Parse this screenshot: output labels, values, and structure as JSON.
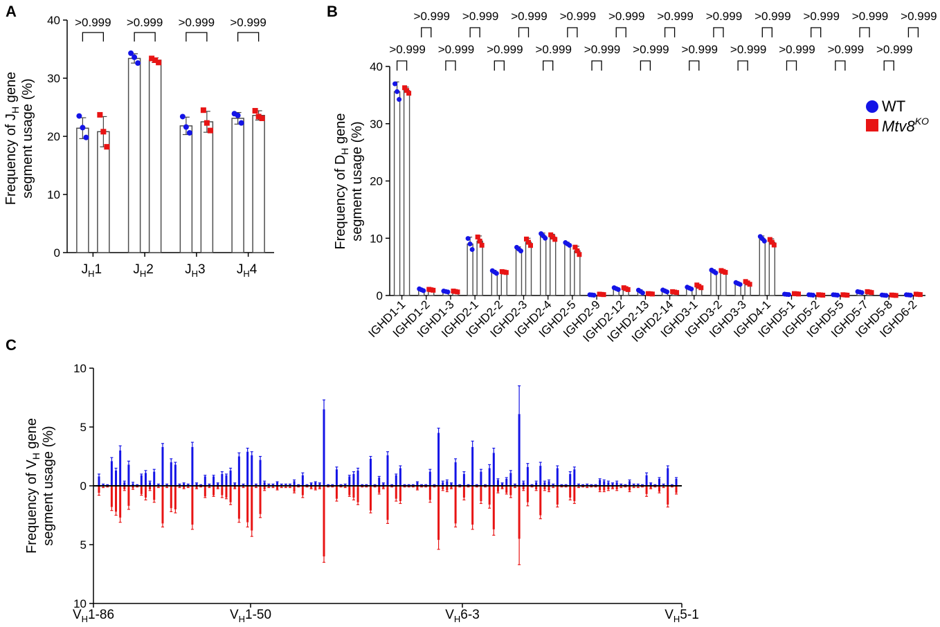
{
  "panels": {
    "a": "A",
    "b": "B",
    "c": "C"
  },
  "legend": {
    "wt": "WT",
    "ko_main": "Mtv8",
    "ko_sup": "KO"
  },
  "colors": {
    "wt": "#1414e6",
    "ko": "#e81414",
    "bar_edge": "#4d4d4d",
    "axis": "#000000"
  },
  "chart_data": [
    {
      "id": "A",
      "type": "bar",
      "title": "",
      "ylabel_line1_pre": "Frequency of J",
      "ylabel_line1_sub": "H",
      "ylabel_line1_post": " gene",
      "ylabel_line2": "segment usage (%)",
      "ylim": [
        0,
        40
      ],
      "yticks": [
        0,
        10,
        20,
        30,
        40
      ],
      "categories": [
        {
          "main": "J",
          "sub": "H",
          "num": "1"
        },
        {
          "main": "J",
          "sub": "H",
          "num": "2"
        },
        {
          "main": "J",
          "sub": "H",
          "num": "3"
        },
        {
          "main": "J",
          "sub": "H",
          "num": "4"
        }
      ],
      "series": [
        {
          "name": "WT",
          "values": [
            21.4,
            33.4,
            21.8,
            23.1
          ],
          "err": [
            1.8,
            0.8,
            1.5,
            1.0
          ],
          "points": [
            [
              23.5,
              21.5,
              19.8
            ],
            [
              34.3,
              33.6,
              32.6
            ],
            [
              23.4,
              21.6,
              20.6
            ],
            [
              23.9,
              23.6,
              22.3
            ]
          ]
        },
        {
          "name": "Mtv8KO",
          "values": [
            20.8,
            33.1,
            22.5,
            23.6
          ],
          "err": [
            2.6,
            0.4,
            1.8,
            0.8
          ],
          "points": [
            [
              23.7,
              20.8,
              18.2
            ],
            [
              33.4,
              33.1,
              32.7
            ],
            [
              24.5,
              22.3,
              21.0
            ],
            [
              24.4,
              23.4,
              23.1
            ]
          ]
        }
      ],
      "pvalues": [
        ">0.999",
        ">0.999",
        ">0.999",
        ">0.999"
      ]
    },
    {
      "id": "B",
      "type": "bar",
      "title": "",
      "ylabel_line1_pre": "Frequency of D",
      "ylabel_line1_sub": "H",
      "ylabel_line1_post": " gene",
      "ylabel_line2": "segment usage (%)",
      "ylim": [
        0,
        40
      ],
      "yticks": [
        0,
        10,
        20,
        30,
        40
      ],
      "categories": [
        "IGHD1-1",
        "IGHD1-2",
        "IGHD1-3",
        "IGHD2-1",
        "IGHD2-2",
        "IGHD2-3",
        "IGHD2-4",
        "IGHD2-5",
        "IGHD2-9",
        "IGHD2-12",
        "IGHD2-13",
        "IGHD2-14",
        "IGHD3-1",
        "IGHD3-2",
        "IGHD3-3",
        "IGHD4-1",
        "IGHD5-1",
        "IGHD5-2",
        "IGHD5-5",
        "IGHD5-7",
        "IGHD5-8",
        "IGHD6-2"
      ],
      "series": [
        {
          "name": "WT",
          "values": [
            35.6,
            1.0,
            0.7,
            9.0,
            4.1,
            8.1,
            10.4,
            9.0,
            0.1,
            1.2,
            0.7,
            0.8,
            1.3,
            4.2,
            2.1,
            9.9,
            0.2,
            0.1,
            0.1,
            0.6,
            0.05,
            0.1
          ],
          "err": [
            1.7,
            0.2,
            0.1,
            1.2,
            0.3,
            0.4,
            0.5,
            0.3,
            0.05,
            0.2,
            0.3,
            0.2,
            0.2,
            0.3,
            0.2,
            0.5,
            0.05,
            0.05,
            0.05,
            0.1,
            0.05,
            0.05
          ]
        },
        {
          "name": "Mtv8KO",
          "values": [
            35.8,
            1.0,
            0.7,
            9.5,
            4.1,
            9.3,
            10.2,
            7.8,
            0.2,
            1.2,
            0.3,
            0.6,
            1.6,
            4.2,
            2.2,
            9.3,
            0.3,
            0.1,
            0.1,
            0.6,
            0.05,
            0.2
          ],
          "err": [
            0.6,
            0.1,
            0.1,
            0.9,
            0.1,
            0.7,
            0.5,
            0.8,
            0.05,
            0.2,
            0.05,
            0.1,
            0.3,
            0.2,
            0.3,
            0.6,
            0.05,
            0.05,
            0.05,
            0.1,
            0.05,
            0.05
          ]
        }
      ],
      "pvalues": [
        ">0.999",
        ">0.999",
        ">0.999",
        ">0.999",
        ">0.999",
        ">0.999",
        ">0.999",
        ">0.999",
        ">0.999",
        ">0.999",
        ">0.999",
        ">0.999",
        ">0.999",
        ">0.999",
        ">0.999",
        ">0.999",
        ">0.999",
        ">0.999",
        ">0.999",
        ">0.999",
        ">0.999",
        ">0.999"
      ],
      "legend_placement": "top-right"
    },
    {
      "id": "C",
      "type": "bar",
      "title": "",
      "ylabel_line1_pre": "Frequency of V",
      "ylabel_line1_sub": "H",
      "ylabel_line1_post": " gene",
      "ylabel_line2": "segment usage (%)",
      "ylim": [
        -10,
        10
      ],
      "yticks": [
        10,
        5,
        0,
        5,
        10
      ],
      "ytick_values": [
        10,
        5,
        0,
        -5,
        -10
      ],
      "xticks": [
        {
          "main": "V",
          "sub": "H",
          "num": "1-86"
        },
        {
          "main": "V",
          "sub": "H",
          "num": "1-50"
        },
        {
          "main": "V",
          "sub": "H",
          "num": "6-3"
        },
        {
          "main": "V",
          "sub": "H",
          "num": "5-1"
        }
      ],
      "series": [
        {
          "name": "WT",
          "values": [
            0.8,
            0.1,
            0.05,
            2.1,
            1.3,
            3.0,
            0.3,
            1.8,
            0.2,
            0.05,
            0.9,
            1.1,
            0.3,
            1.2,
            0.1,
            3.3,
            0.1,
            2.0,
            1.8,
            0.1,
            0.2,
            0.1,
            3.3,
            0.2,
            0.05,
            0.8,
            0.1,
            0.8,
            0.2,
            1.0,
            0.9,
            1.3,
            0.2,
            2.5,
            0.1,
            2.9,
            2.6,
            0.1,
            2.2,
            0.3,
            0.1,
            0.1,
            0.3,
            0.1,
            0.1,
            0.1,
            0.4,
            0.05,
            0.9,
            0.05,
            0.2,
            0.3,
            0.2,
            6.5,
            0.05,
            0.05,
            1.4,
            0.05,
            0.1,
            0.8,
            1.0,
            1.3,
            0.05,
            0.05,
            2.3,
            0.05,
            0.7,
            0.2,
            2.6,
            0.05,
            0.9,
            1.5,
            0.05,
            0.05,
            0.05,
            0.3,
            0.05,
            0.05,
            1.2,
            0.05,
            4.5,
            0.3,
            0.4,
            0.2,
            2.0,
            0.05,
            1.0,
            0.05,
            3.3,
            0.05,
            1.2,
            0.05,
            1.5,
            2.8,
            0.5,
            0.2,
            0.6,
            1.1,
            0.1,
            6.1,
            0.3,
            1.6,
            0.05,
            0.3,
            1.7,
            0.3,
            0.4,
            0.1,
            1.5,
            0.05,
            0.05,
            1.0,
            1.4,
            0.1,
            0.05,
            0.1,
            0.05,
            0.05,
            0.5,
            0.4,
            0.3,
            0.2,
            0.3,
            0.1,
            0.05,
            0.4,
            0.1,
            0.1,
            0.05,
            0.9,
            0.2,
            0.05,
            0.6,
            0.1,
            1.5,
            0.05,
            0.6
          ],
          "err": [
            0.2,
            0.05,
            0.05,
            0.3,
            0.2,
            0.4,
            0.1,
            0.3,
            0.1,
            0.05,
            0.1,
            0.2,
            0.1,
            0.2,
            0.05,
            0.3,
            0.05,
            0.3,
            0.2,
            0.05,
            0.05,
            0.05,
            0.4,
            0.05,
            0.05,
            0.1,
            0.05,
            0.1,
            0.05,
            0.2,
            0.1,
            0.2,
            0.05,
            0.3,
            0.05,
            0.3,
            0.3,
            0.05,
            0.3,
            0.1,
            0.05,
            0.05,
            0.05,
            0.05,
            0.05,
            0.05,
            0.1,
            0.05,
            0.2,
            0.05,
            0.05,
            0.05,
            0.05,
            0.8,
            0.05,
            0.05,
            0.2,
            0.05,
            0.05,
            0.1,
            0.2,
            0.2,
            0.05,
            0.05,
            0.2,
            0.05,
            0.1,
            0.05,
            0.3,
            0.05,
            0.1,
            0.2,
            0.05,
            0.05,
            0.05,
            0.05,
            0.05,
            0.05,
            0.2,
            0.05,
            0.4,
            0.1,
            0.1,
            0.05,
            0.3,
            0.05,
            0.2,
            0.05,
            0.5,
            0.05,
            0.2,
            0.05,
            0.3,
            0.4,
            0.1,
            0.05,
            0.1,
            0.2,
            0.05,
            2.4,
            0.1,
            0.3,
            0.05,
            0.1,
            0.3,
            0.1,
            0.1,
            0.05,
            0.2,
            0.05,
            0.05,
            0.2,
            0.2,
            0.05,
            0.05,
            0.05,
            0.05,
            0.05,
            0.1,
            0.1,
            0.1,
            0.05,
            0.1,
            0.05,
            0.05,
            0.1,
            0.05,
            0.05,
            0.05,
            0.2,
            0.05,
            0.05,
            0.1,
            0.05,
            0.2,
            0.05,
            0.1
          ]
        },
        {
          "name": "Mtv8KO",
          "values": [
            0.6,
            0.1,
            0.05,
            1.8,
            2.2,
            2.7,
            0.3,
            1.7,
            0.2,
            0.05,
            0.7,
            1.0,
            0.3,
            1.2,
            0.1,
            3.2,
            0.1,
            1.9,
            2.0,
            0.1,
            0.2,
            0.1,
            3.3,
            0.2,
            0.05,
            0.9,
            0.1,
            0.8,
            0.2,
            0.8,
            1.0,
            1.4,
            0.2,
            2.8,
            0.1,
            3.1,
            3.8,
            0.1,
            2.4,
            0.3,
            0.1,
            0.1,
            0.3,
            0.1,
            0.1,
            0.1,
            0.5,
            0.05,
            0.8,
            0.05,
            0.2,
            0.3,
            0.2,
            6.0,
            0.05,
            0.05,
            1.1,
            0.05,
            0.1,
            0.8,
            1.0,
            1.4,
            0.05,
            0.05,
            2.1,
            0.05,
            0.6,
            0.2,
            2.9,
            0.05,
            1.1,
            1.3,
            0.05,
            0.05,
            0.05,
            0.3,
            0.05,
            0.05,
            1.2,
            0.05,
            4.6,
            0.3,
            0.4,
            0.2,
            3.2,
            0.05,
            1.0,
            0.05,
            3.3,
            0.05,
            1.3,
            0.05,
            1.6,
            3.7,
            0.5,
            0.2,
            0.6,
            0.8,
            0.1,
            4.5,
            0.3,
            1.4,
            0.05,
            0.3,
            2.5,
            0.3,
            0.4,
            0.1,
            1.6,
            0.05,
            0.05,
            1.0,
            1.3,
            0.1,
            0.05,
            0.1,
            0.05,
            0.05,
            0.4,
            0.4,
            0.3,
            0.2,
            0.3,
            0.1,
            0.05,
            0.4,
            0.1,
            0.1,
            0.05,
            0.7,
            0.2,
            0.05,
            0.5,
            0.1,
            1.6,
            0.05,
            0.6
          ],
          "err": [
            0.2,
            0.05,
            0.05,
            0.3,
            0.3,
            0.4,
            0.1,
            0.3,
            0.1,
            0.05,
            0.1,
            0.2,
            0.1,
            0.2,
            0.05,
            0.3,
            0.05,
            0.3,
            0.3,
            0.05,
            0.05,
            0.05,
            0.4,
            0.05,
            0.05,
            0.1,
            0.05,
            0.1,
            0.05,
            0.2,
            0.1,
            0.2,
            0.05,
            0.3,
            0.05,
            0.4,
            0.5,
            0.05,
            0.3,
            0.1,
            0.05,
            0.05,
            0.05,
            0.05,
            0.05,
            0.05,
            0.1,
            0.05,
            0.2,
            0.05,
            0.05,
            0.05,
            0.05,
            0.5,
            0.05,
            0.05,
            0.2,
            0.05,
            0.05,
            0.1,
            0.2,
            0.2,
            0.05,
            0.05,
            0.2,
            0.05,
            0.1,
            0.05,
            0.3,
            0.05,
            0.2,
            0.2,
            0.05,
            0.05,
            0.05,
            0.05,
            0.05,
            0.05,
            0.2,
            0.05,
            0.8,
            0.1,
            0.1,
            0.05,
            0.3,
            0.05,
            0.2,
            0.05,
            0.4,
            0.05,
            0.2,
            0.05,
            0.3,
            0.5,
            0.1,
            0.05,
            0.1,
            0.2,
            0.05,
            2.2,
            0.1,
            0.3,
            0.05,
            0.1,
            0.3,
            0.1,
            0.1,
            0.05,
            0.2,
            0.05,
            0.05,
            0.2,
            0.2,
            0.05,
            0.05,
            0.05,
            0.05,
            0.05,
            0.1,
            0.1,
            0.1,
            0.05,
            0.1,
            0.05,
            0.05,
            0.1,
            0.05,
            0.05,
            0.05,
            0.2,
            0.05,
            0.05,
            0.1,
            0.05,
            0.2,
            0.05,
            0.1
          ]
        }
      ]
    }
  ]
}
